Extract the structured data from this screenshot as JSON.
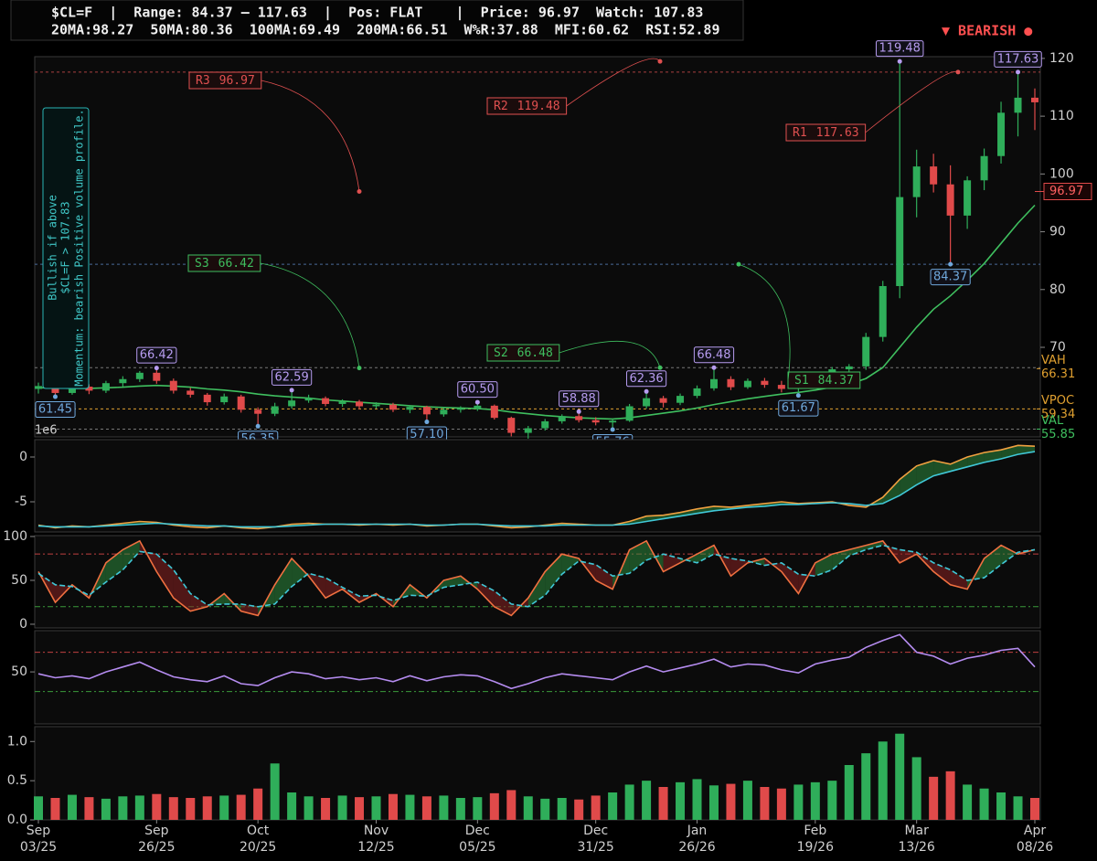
{
  "header": {
    "line1": "$CL=F  |  Range: 84.37 – 117.63  |  Pos: FLAT    |  Price: 96.97  Watch: 107.83",
    "line2": "20MA:98.27  50MA:80.36  100MA:69.49  200MA:66.51  W%R:37.88  MFI:60.62  RSI:52.89",
    "signal": "▼ BEARISH ●"
  },
  "chart_data": [
    {
      "type": "candlestick",
      "axis_side": "right",
      "up_color": "#2fae5a",
      "down_color": "#e04a4a",
      "ylim": [
        54.5,
        120.3
      ],
      "yticks": [
        120,
        110,
        100,
        90,
        80,
        70
      ],
      "open": [
        62.8,
        63.3,
        62.1,
        63.2,
        62.5,
        63.8,
        64.5,
        65.6,
        64.2,
        62.5,
        61.8,
        60.5,
        61.5,
        59.2,
        58.5,
        59.8,
        60.8,
        61.2,
        60.2,
        60.6,
        59.8,
        60.1,
        59.2,
        59.7,
        58.4,
        59.2,
        59.4,
        59.9,
        57.8,
        55.2,
        56.0,
        57.2,
        58.1,
        57.4,
        57.0,
        57.3,
        59.8,
        61.2,
        60.4,
        61.6,
        62.9,
        64.5,
        63.1,
        64.2,
        63.5,
        62.8,
        63.0,
        65.1,
        66.2,
        66.7,
        71.8,
        80.6,
        96.0,
        101.3,
        98.2,
        92.8,
        98.9,
        103.1,
        110.6,
        113.2
      ],
      "high": [
        63.9,
        63.6,
        63.5,
        63.6,
        64.2,
        65.0,
        65.9,
        66.42,
        64.6,
        63.0,
        62.1,
        62.0,
        61.8,
        59.6,
        60.4,
        62.59,
        61.8,
        61.5,
        61.0,
        60.9,
        60.5,
        60.4,
        60.0,
        59.9,
        59.6,
        59.8,
        60.5,
        60.1,
        58.0,
        56.4,
        57.6,
        58.4,
        58.88,
        57.9,
        57.6,
        60.2,
        62.36,
        61.6,
        62.0,
        63.4,
        66.48,
        65.0,
        64.6,
        64.7,
        64.2,
        63.4,
        65.4,
        66.6,
        67.1,
        72.5,
        81.5,
        119.48,
        104.2,
        103.5,
        101.5,
        99.6,
        104.4,
        112.5,
        117.63,
        114.8
      ],
      "low": [
        62.0,
        61.45,
        61.8,
        61.9,
        62.1,
        63.2,
        64.0,
        63.7,
        62.0,
        61.3,
        59.9,
        60.1,
        58.7,
        56.35,
        58.1,
        59.4,
        60.4,
        59.8,
        59.7,
        59.3,
        59.4,
        58.8,
        58.6,
        57.1,
        58.0,
        58.7,
        59.0,
        57.5,
        54.6,
        54.2,
        55.6,
        56.8,
        57.0,
        56.5,
        55.76,
        57.1,
        59.4,
        59.6,
        60.0,
        61.2,
        62.5,
        62.6,
        62.8,
        63.0,
        62.2,
        61.67,
        62.8,
        64.6,
        65.2,
        66.1,
        71.0,
        78.5,
        92.5,
        96.8,
        84.37,
        90.5,
        97.2,
        101.8,
        106.5,
        107.6
      ],
      "close": [
        63.3,
        62.1,
        63.2,
        62.5,
        63.8,
        64.5,
        65.6,
        64.2,
        62.5,
        61.8,
        60.5,
        61.5,
        59.2,
        58.5,
        59.8,
        60.8,
        61.2,
        60.2,
        60.6,
        59.8,
        60.1,
        59.2,
        59.7,
        58.4,
        59.2,
        59.4,
        59.9,
        57.8,
        55.2,
        56.0,
        57.2,
        58.1,
        57.4,
        57.0,
        57.3,
        59.8,
        61.2,
        60.4,
        61.6,
        62.9,
        64.5,
        63.1,
        64.2,
        63.5,
        62.8,
        63.0,
        65.1,
        66.2,
        66.7,
        71.8,
        80.6,
        96.0,
        101.3,
        98.2,
        92.8,
        98.9,
        103.1,
        110.6,
        113.2,
        112.4
      ],
      "series": [
        {
          "color": "#3fbf5f",
          "values": [
            63.0,
            63.0,
            62.9,
            62.9,
            63.0,
            63.1,
            63.3,
            63.4,
            63.3,
            63.1,
            62.8,
            62.6,
            62.3,
            61.9,
            61.6,
            61.4,
            61.2,
            60.9,
            60.7,
            60.5,
            60.3,
            60.1,
            59.9,
            59.7,
            59.6,
            59.5,
            59.4,
            59.2,
            58.8,
            58.5,
            58.2,
            58.0,
            57.8,
            57.7,
            57.6,
            57.8,
            58.2,
            58.6,
            59.0,
            59.5,
            60.1,
            60.6,
            61.1,
            61.5,
            61.9,
            62.2,
            62.6,
            63.1,
            63.6,
            64.6,
            66.5,
            70.0,
            73.5,
            76.6,
            78.9,
            81.6,
            84.5,
            88.0,
            91.5,
            94.6
          ]
        }
      ],
      "levels": [
        {
          "value": 117.63,
          "color": "#a84040"
        },
        {
          "value": 84.37,
          "color": "#4a6a9a"
        },
        {
          "value": 66.48,
          "color": "#777777"
        },
        {
          "value": 59.34,
          "color": "#e0a030"
        },
        {
          "value": 55.85,
          "color": "#777777"
        }
      ],
      "annotations": [
        {
          "label": "R3",
          "value": 96.97,
          "color": "#e05050"
        },
        {
          "label": "R2",
          "value": 119.48,
          "color": "#e05050"
        },
        {
          "label": "R1",
          "value": 117.63,
          "color": "#e05050"
        },
        {
          "label": "S3",
          "value": 66.42,
          "color": "#3fbf5f"
        },
        {
          "label": "S2",
          "value": 66.48,
          "color": "#3fbf5f"
        },
        {
          "label": "S1",
          "value": 84.37,
          "color": "#3fbf5f"
        }
      ],
      "pivots": [
        61.45,
        66.42,
        56.35,
        62.59,
        {
          "value": 57.1,
          "label": "57.10"
        },
        {
          "value": 60.5,
          "label": "60.50"
        },
        58.88,
        55.76,
        62.36,
        66.48,
        61.67,
        84.37,
        119.48,
        117.63
      ],
      "profile_labels": [
        {
          "label": "VAH",
          "value": 66.31,
          "color": "#e0a030"
        },
        {
          "label": "VPOC",
          "value": 59.34,
          "color": "#e0a030"
        },
        {
          "label": "VAL",
          "value": 55.85,
          "color": "#3fbf5f"
        }
      ],
      "price_tag": 96.97,
      "note": [
        "Bullish if above",
        "$CL=F > 107.83",
        "Momentum: bearish Positive volume profile."
      ]
    },
    {
      "type": "line",
      "axis_side": "left",
      "offset_label": "1e6",
      "ylim": [
        -8.37,
        1.94
      ],
      "yticks": [
        0,
        -5
      ],
      "fill_between": true,
      "series": [
        {
          "color": "#f0a040",
          "values": [
            -7.6,
            -7.9,
            -7.7,
            -7.8,
            -7.6,
            -7.4,
            -7.2,
            -7.3,
            -7.6,
            -7.8,
            -7.9,
            -7.7,
            -7.9,
            -8.0,
            -7.8,
            -7.5,
            -7.4,
            -7.5,
            -7.5,
            -7.6,
            -7.5,
            -7.6,
            -7.5,
            -7.7,
            -7.6,
            -7.5,
            -7.5,
            -7.7,
            -7.9,
            -7.8,
            -7.6,
            -7.4,
            -7.5,
            -7.6,
            -7.6,
            -7.2,
            -6.6,
            -6.5,
            -6.2,
            -5.8,
            -5.5,
            -5.6,
            -5.4,
            -5.2,
            -5.0,
            -5.2,
            -5.1,
            -5.0,
            -5.4,
            -5.6,
            -4.5,
            -2.5,
            -1.0,
            -0.4,
            -0.8,
            0.0,
            0.5,
            0.8,
            1.3,
            1.2
          ]
        },
        {
          "color": "#40c8d8",
          "values": [
            -7.7,
            -7.8,
            -7.8,
            -7.8,
            -7.7,
            -7.6,
            -7.5,
            -7.4,
            -7.5,
            -7.6,
            -7.7,
            -7.7,
            -7.8,
            -7.8,
            -7.8,
            -7.7,
            -7.6,
            -7.5,
            -7.5,
            -7.5,
            -7.5,
            -7.5,
            -7.5,
            -7.6,
            -7.6,
            -7.5,
            -7.5,
            -7.6,
            -7.7,
            -7.7,
            -7.7,
            -7.6,
            -7.6,
            -7.6,
            -7.6,
            -7.5,
            -7.2,
            -6.9,
            -6.6,
            -6.3,
            -6.0,
            -5.8,
            -5.6,
            -5.5,
            -5.3,
            -5.3,
            -5.2,
            -5.1,
            -5.2,
            -5.4,
            -5.2,
            -4.3,
            -3.1,
            -2.1,
            -1.6,
            -1.1,
            -0.6,
            -0.2,
            0.3,
            0.6
          ]
        }
      ]
    },
    {
      "type": "line",
      "axis_side": "left",
      "ylim": [
        -4.2,
        101
      ],
      "yticks": [
        100,
        50,
        0
      ],
      "fill_between": true,
      "hlines": [
        {
          "value": 80,
          "color": "#c04040"
        },
        {
          "value": 20,
          "color": "#3a9a3a"
        }
      ],
      "series": [
        {
          "color": "#f07040",
          "values": [
            60,
            25,
            45,
            30,
            70,
            85,
            95,
            60,
            30,
            15,
            20,
            35,
            15,
            10,
            45,
            75,
            55,
            30,
            40,
            25,
            35,
            20,
            45,
            30,
            50,
            55,
            40,
            20,
            10,
            30,
            60,
            80,
            75,
            50,
            40,
            85,
            95,
            60,
            70,
            80,
            90,
            55,
            70,
            75,
            60,
            35,
            70,
            80,
            85,
            90,
            95,
            70,
            80,
            60,
            45,
            40,
            75,
            90,
            80,
            85
          ]
        },
        {
          "color": "#40c8d8",
          "dash": true,
          "values": [
            58,
            45,
            43,
            33,
            48,
            62,
            83,
            80,
            62,
            35,
            22,
            23,
            23,
            20,
            23,
            43,
            58,
            53,
            42,
            32,
            33,
            27,
            33,
            32,
            42,
            45,
            48,
            38,
            23,
            20,
            33,
            57,
            72,
            68,
            55,
            58,
            73,
            80,
            75,
            70,
            80,
            75,
            72,
            67,
            70,
            57,
            55,
            62,
            78,
            85,
            90,
            85,
            82,
            70,
            62,
            50,
            53,
            68,
            82,
            85
          ]
        }
      ]
    },
    {
      "type": "line",
      "axis_side": "left",
      "ylim": [
        -3,
        92
      ],
      "yticks": [
        50
      ],
      "hlines": [
        {
          "value": 70,
          "color": "#c04040"
        },
        {
          "value": 30,
          "color": "#3a9a3a"
        }
      ],
      "series": [
        {
          "color": "#b58cf0",
          "values": [
            48,
            44,
            46,
            43,
            50,
            55,
            60,
            52,
            45,
            42,
            40,
            46,
            38,
            36,
            44,
            50,
            48,
            43,
            45,
            42,
            44,
            40,
            46,
            41,
            45,
            47,
            46,
            40,
            33,
            38,
            44,
            48,
            46,
            44,
            42,
            50,
            56,
            50,
            54,
            58,
            63,
            55,
            58,
            57,
            52,
            49,
            58,
            62,
            65,
            75,
            82,
            88,
            70,
            66,
            58,
            64,
            67,
            72,
            74,
            55
          ]
        }
      ]
    },
    {
      "type": "bar",
      "axis_side": "left",
      "ylim": [
        0,
        1.19
      ],
      "yticks": [
        {
          "value": 1,
          "label": "1.0"
        },
        {
          "value": 0.5,
          "label": "0.5"
        },
        {
          "value": 0,
          "label": "0.0"
        }
      ],
      "values": [
        0.3,
        0.28,
        0.32,
        0.29,
        0.27,
        0.3,
        0.31,
        0.33,
        0.29,
        0.28,
        0.3,
        0.31,
        0.32,
        0.4,
        0.72,
        0.35,
        0.3,
        0.28,
        0.31,
        0.29,
        0.3,
        0.33,
        0.32,
        0.3,
        0.31,
        0.28,
        0.29,
        0.34,
        0.38,
        0.3,
        0.27,
        0.28,
        0.26,
        0.31,
        0.35,
        0.45,
        0.5,
        0.42,
        0.48,
        0.52,
        0.44,
        0.46,
        0.5,
        0.42,
        0.4,
        0.45,
        0.48,
        0.5,
        0.7,
        0.85,
        1.0,
        1.1,
        0.8,
        0.55,
        0.62,
        0.45,
        0.4,
        0.35,
        0.3,
        0.28
      ],
      "categories": [
        [
          "Sep",
          "03/25"
        ],
        null,
        null,
        null,
        null,
        null,
        null,
        [
          "Sep",
          "26/25"
        ],
        null,
        null,
        null,
        null,
        null,
        [
          "Oct",
          "20/25"
        ],
        null,
        null,
        null,
        null,
        null,
        null,
        [
          "Nov",
          "12/25"
        ],
        null,
        null,
        null,
        null,
        null,
        [
          "Dec",
          "05/25"
        ],
        null,
        null,
        null,
        null,
        null,
        null,
        [
          "Dec",
          "31/25"
        ],
        null,
        null,
        null,
        null,
        null,
        [
          "Jan",
          "26/26"
        ],
        null,
        null,
        null,
        null,
        null,
        null,
        [
          "Feb",
          "19/26"
        ],
        null,
        null,
        null,
        null,
        null,
        [
          "Mar",
          "13/26"
        ],
        null,
        null,
        null,
        null,
        null,
        null,
        [
          "Apr",
          "08/26"
        ]
      ]
    }
  ]
}
